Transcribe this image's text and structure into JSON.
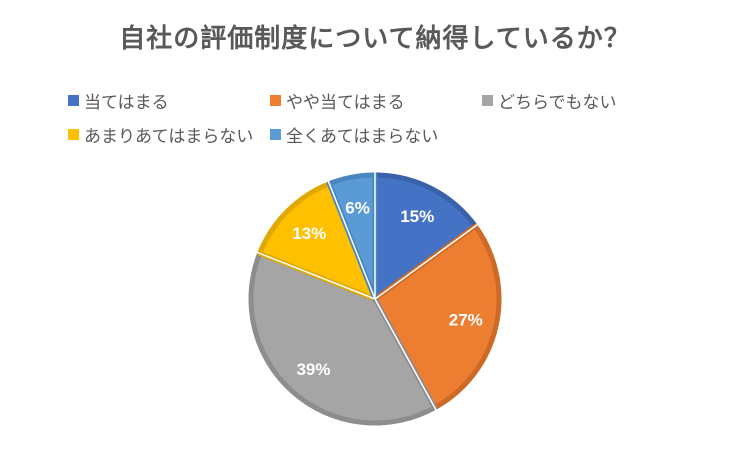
{
  "chart_data": {
    "type": "pie",
    "title": "自社の評価制度について納得しているか？",
    "categories": [
      "当てはまる",
      "やや当てはまる",
      "どちらでもない",
      "あまりあてはまらない",
      "全くあてはまらない"
    ],
    "values": [
      15,
      27,
      39,
      13,
      6
    ],
    "data_labels": [
      "15%",
      "27%",
      "39%",
      "13%",
      "6%"
    ],
    "colors": [
      "#4472C4",
      "#ED7D31",
      "#A5A5A5",
      "#FFC000",
      "#5B9BD5"
    ],
    "edge_colors": [
      "#3A62AA",
      "#CC6A26",
      "#8D8D8D",
      "#E0A800",
      "#4A86BE"
    ],
    "legend_position": "top"
  }
}
